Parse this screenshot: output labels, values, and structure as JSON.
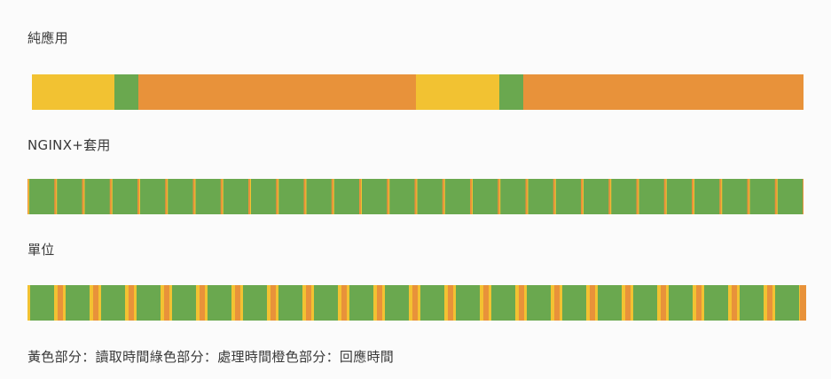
{
  "diagram": {
    "colors": {
      "read": "#f2c232",
      "process": "#6aa84f",
      "respond": "#e8923a"
    },
    "sections": [
      {
        "id": "pure-app",
        "label": "純應用"
      },
      {
        "id": "nginx-suite",
        "label": "NGINX+套用"
      },
      {
        "id": "unit",
        "label": "單位"
      }
    ],
    "legend": "黃色部分：讀取時間綠色部分：處理時間橙色部分：回應時間"
  }
}
